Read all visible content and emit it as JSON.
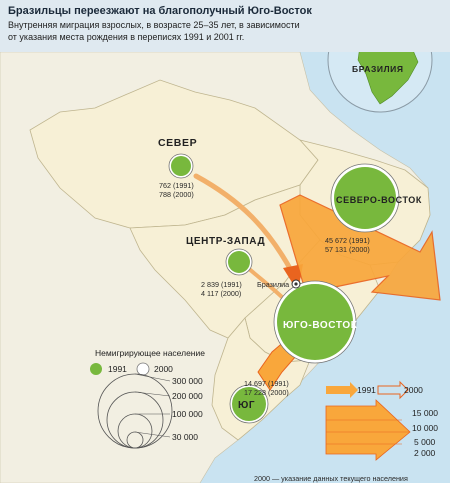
{
  "title": "Бразильцы переезжают на благополучный Юго-Восток",
  "subtitle": "Внутренняя миграция взрослых, в возрасте 25–35 лет, в зависимости от указания места рождения в переписях 1991 и 2001 гг.",
  "inset_label": "БРАЗИЛИЯ",
  "capital_label": "Бразилиа",
  "colors": {
    "land": "#f6f0d9",
    "ocean": "#c9e3f1",
    "non_migrant_1991": "#78b83d",
    "circle_2000": "#ffffff",
    "flow_arrow_fill": "#f9a73b",
    "flow_arrow_outline": "#e9641f"
  },
  "regions": [
    {
      "name": "СЕВЕР",
      "value_1991": "762 (1991)",
      "value_2000": "788 (2000)"
    },
    {
      "name": "ЦЕНТР-ЗАПАД",
      "value_1991": "2 839 (1991)",
      "value_2000": "4 117 (2000)"
    },
    {
      "name": "СЕВЕРО-ВОСТОК",
      "value_1991": "45 672 (1991)",
      "value_2000": "57 131 (2000)"
    },
    {
      "name": "ЮГО-ВОСТОК"
    },
    {
      "name": "ЮГ",
      "value_1991": "14 697 (1991)",
      "value_2000": "17 228 (2000)"
    }
  ],
  "legend": {
    "title": "Немигрирующее население",
    "year_1991": "1991",
    "year_2000": "2000",
    "circle_scale": [
      "300 000",
      "200 000",
      "100 000",
      "30 000"
    ],
    "arrow_years": [
      "1991",
      "2000"
    ],
    "arrow_scale": [
      "15 000",
      "10 000",
      "5 000",
      "2 000"
    ]
  },
  "footer_fragment": "2000 — указание данных текущего населения"
}
